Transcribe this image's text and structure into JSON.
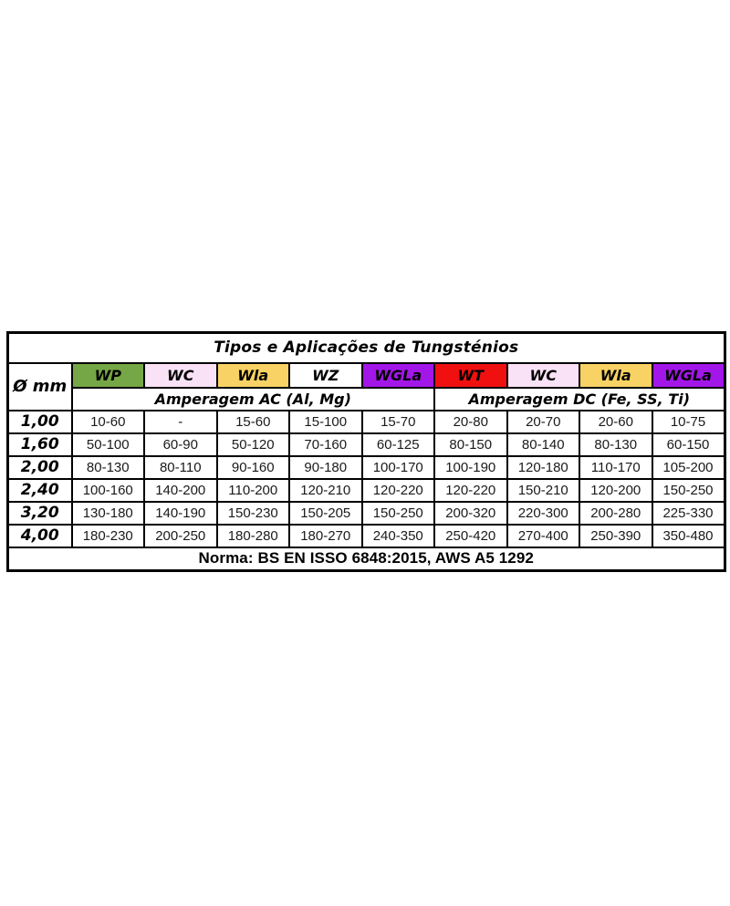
{
  "chart_data": {
    "type": "table",
    "title": "Tipos e Aplicações de Tungsténios",
    "corner_header": "Ø mm",
    "electrode_columns": [
      {
        "label": "WP",
        "bg": "#76A746"
      },
      {
        "label": "WC",
        "bg": "#F9E2F5"
      },
      {
        "label": "Wla",
        "bg": "#F8D264"
      },
      {
        "label": "WZ",
        "bg": "#FFFFFF"
      },
      {
        "label": "WGLa",
        "bg": "#A316E8"
      },
      {
        "label": "WT",
        "bg": "#F01010"
      },
      {
        "label": "WC",
        "bg": "#F9E2F5"
      },
      {
        "label": "Wla",
        "bg": "#F8D264"
      },
      {
        "label": "WGLa",
        "bg": "#A316E8"
      }
    ],
    "group_headers": [
      {
        "label": "Amperagem AC (Al, Mg)",
        "colspan": 5
      },
      {
        "label": "Amperagem DC (Fe, SS, Ti)",
        "colspan": 4
      }
    ],
    "rows": [
      {
        "diameter": "1,00",
        "values": [
          "10-60",
          "-",
          "15-60",
          "15-100",
          "15-70",
          "20-80",
          "20-70",
          "20-60",
          "10-75"
        ]
      },
      {
        "diameter": "1,60",
        "values": [
          "50-100",
          "60-90",
          "50-120",
          "70-160",
          "60-125",
          "80-150",
          "80-140",
          "80-130",
          "60-150"
        ]
      },
      {
        "diameter": "2,00",
        "values": [
          "80-130",
          "80-110",
          "90-160",
          "90-180",
          "100-170",
          "100-190",
          "120-180",
          "110-170",
          "105-200"
        ]
      },
      {
        "diameter": "2,40",
        "values": [
          "100-160",
          "140-200",
          "110-200",
          "120-210",
          "120-220",
          "120-220",
          "150-210",
          "120-200",
          "150-250"
        ]
      },
      {
        "diameter": "3,20",
        "values": [
          "130-180",
          "140-190",
          "150-230",
          "150-205",
          "150-250",
          "200-320",
          "220-300",
          "200-280",
          "225-330"
        ]
      },
      {
        "diameter": "4,00",
        "values": [
          "180-230",
          "200-250",
          "180-280",
          "180-270",
          "240-350",
          "250-420",
          "270-400",
          "250-390",
          "350-480"
        ]
      }
    ],
    "footer": "Norma: BS EN ISSO 6848:2015, AWS A5 1292",
    "colors": {
      "border": "#000000",
      "wp_green": "#76A746",
      "wc_pink": "#F9E2F5",
      "wla_gold": "#F8D264",
      "wz_white": "#FFFFFF",
      "wgla_purple": "#A316E8",
      "wt_red": "#F01010"
    }
  }
}
